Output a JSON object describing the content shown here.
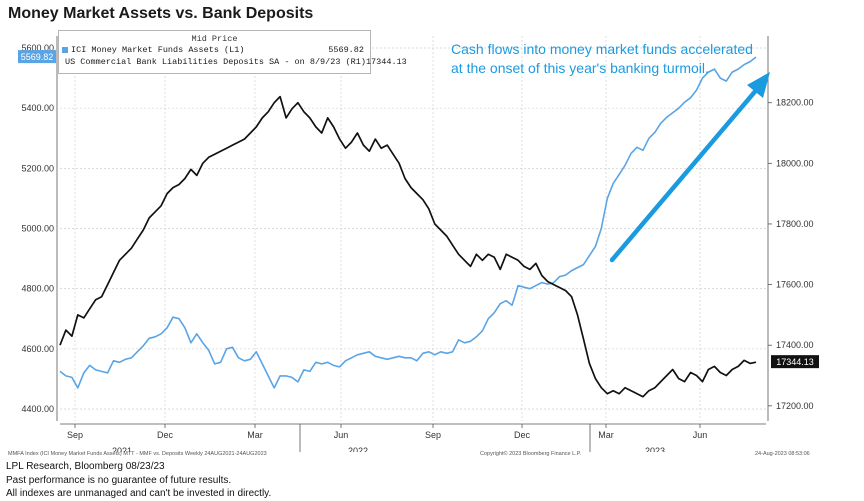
{
  "title": "Money Market Assets vs. Bank Deposits",
  "legend": {
    "header": "Mid Price",
    "items": [
      {
        "name": "ICI Money Market Funds Assets  (L1)",
        "value": "5569.82",
        "color": "#5aa4e6"
      },
      {
        "name": "US Commercial Bank Liabilities Deposits SA -  on 8/9/23  (R1)",
        "value": "17344.13",
        "color": "#111111"
      }
    ]
  },
  "annotation": "Cash flows into money market funds accelerated at the onset of this year's banking turmoil.",
  "footer": {
    "left": "MMFA Index (ICI Money Market Funds Assets) MTT - MMF vs. Deposits  Weekly 24AUG2021-24AUG2023",
    "center": "Copyright© 2023 Bloomberg Finance L.P.",
    "right": "24-Aug-2023 08:53:06"
  },
  "notes": [
    "LPL Research, Bloomberg 08/23/23",
    "Past performance is no guarantee of future results.",
    "All indexes are unmanaged and can't be invested in directly."
  ],
  "chart_data": {
    "type": "line",
    "title": "Money Market Assets vs. Bank Deposits",
    "x_ticks": [
      "Sep",
      "Dec",
      "Mar",
      "Jun",
      "Sep",
      "Dec",
      "Mar",
      "Jun"
    ],
    "year_labels": [
      "2021",
      "2022",
      "2023"
    ],
    "left_axis": {
      "ylim": [
        4360,
        5640
      ],
      "ticks": [
        "4400.00",
        "4600.00",
        "4800.00",
        "5000.00",
        "5200.00",
        "5400.00",
        "5600.00"
      ],
      "last_label": "5569.82"
    },
    "right_axis": {
      "ylim": [
        17150,
        18420
      ],
      "ticks": [
        "17200.00",
        "17400.00",
        "17600.00",
        "17800.00",
        "18000.00",
        "18200.00"
      ],
      "last_label": "17344.13"
    },
    "grid": true,
    "series": [
      {
        "name": "ICI Money Market Funds Assets (L1)",
        "axis": "left",
        "color": "#5aa4e6",
        "values": [
          4525,
          4510,
          4505,
          4470,
          4520,
          4545,
          4530,
          4525,
          4520,
          4560,
          4555,
          4565,
          4570,
          4590,
          4610,
          4635,
          4640,
          4650,
          4670,
          4705,
          4700,
          4670,
          4620,
          4650,
          4620,
          4595,
          4550,
          4555,
          4600,
          4605,
          4570,
          4560,
          4565,
          4590,
          4550,
          4510,
          4470,
          4510,
          4510,
          4505,
          4490,
          4530,
          4525,
          4555,
          4550,
          4555,
          4545,
          4540,
          4560,
          4570,
          4580,
          4585,
          4590,
          4575,
          4570,
          4565,
          4570,
          4575,
          4570,
          4570,
          4560,
          4585,
          4590,
          4580,
          4590,
          4585,
          4590,
          4630,
          4620,
          4625,
          4640,
          4660,
          4700,
          4720,
          4750,
          4760,
          4745,
          4810,
          4805,
          4800,
          4810,
          4820,
          4815,
          4820,
          4840,
          4845,
          4860,
          4870,
          4880,
          4910,
          4940,
          5000,
          5100,
          5150,
          5180,
          5210,
          5250,
          5270,
          5260,
          5300,
          5320,
          5350,
          5370,
          5385,
          5400,
          5420,
          5435,
          5460,
          5500,
          5520,
          5530,
          5500,
          5490,
          5520,
          5530,
          5545,
          5555,
          5570
        ]
      },
      {
        "name": "US Commercial Bank Liabilities Deposits SA (R1)",
        "axis": "right",
        "color": "#111111",
        "values": [
          17400,
          17450,
          17430,
          17500,
          17490,
          17520,
          17550,
          17560,
          17600,
          17640,
          17680,
          17700,
          17720,
          17750,
          17780,
          17820,
          17840,
          17860,
          17900,
          17920,
          17930,
          17950,
          17980,
          17960,
          18000,
          18020,
          18030,
          18040,
          18050,
          18060,
          18070,
          18080,
          18100,
          18120,
          18150,
          18170,
          18200,
          18220,
          18150,
          18180,
          18200,
          18170,
          18150,
          18120,
          18100,
          18150,
          18120,
          18080,
          18050,
          18070,
          18100,
          18060,
          18040,
          18080,
          18050,
          18060,
          18030,
          18000,
          17950,
          17920,
          17900,
          17880,
          17850,
          17800,
          17780,
          17760,
          17730,
          17700,
          17680,
          17660,
          17700,
          17680,
          17700,
          17690,
          17650,
          17700,
          17690,
          17680,
          17660,
          17650,
          17670,
          17630,
          17610,
          17600,
          17590,
          17580,
          17560,
          17500,
          17420,
          17340,
          17290,
          17260,
          17240,
          17250,
          17240,
          17260,
          17250,
          17240,
          17230,
          17250,
          17260,
          17280,
          17300,
          17320,
          17290,
          17280,
          17310,
          17300,
          17280,
          17320,
          17330,
          17310,
          17300,
          17320,
          17330,
          17350,
          17340,
          17344
        ]
      }
    ]
  }
}
